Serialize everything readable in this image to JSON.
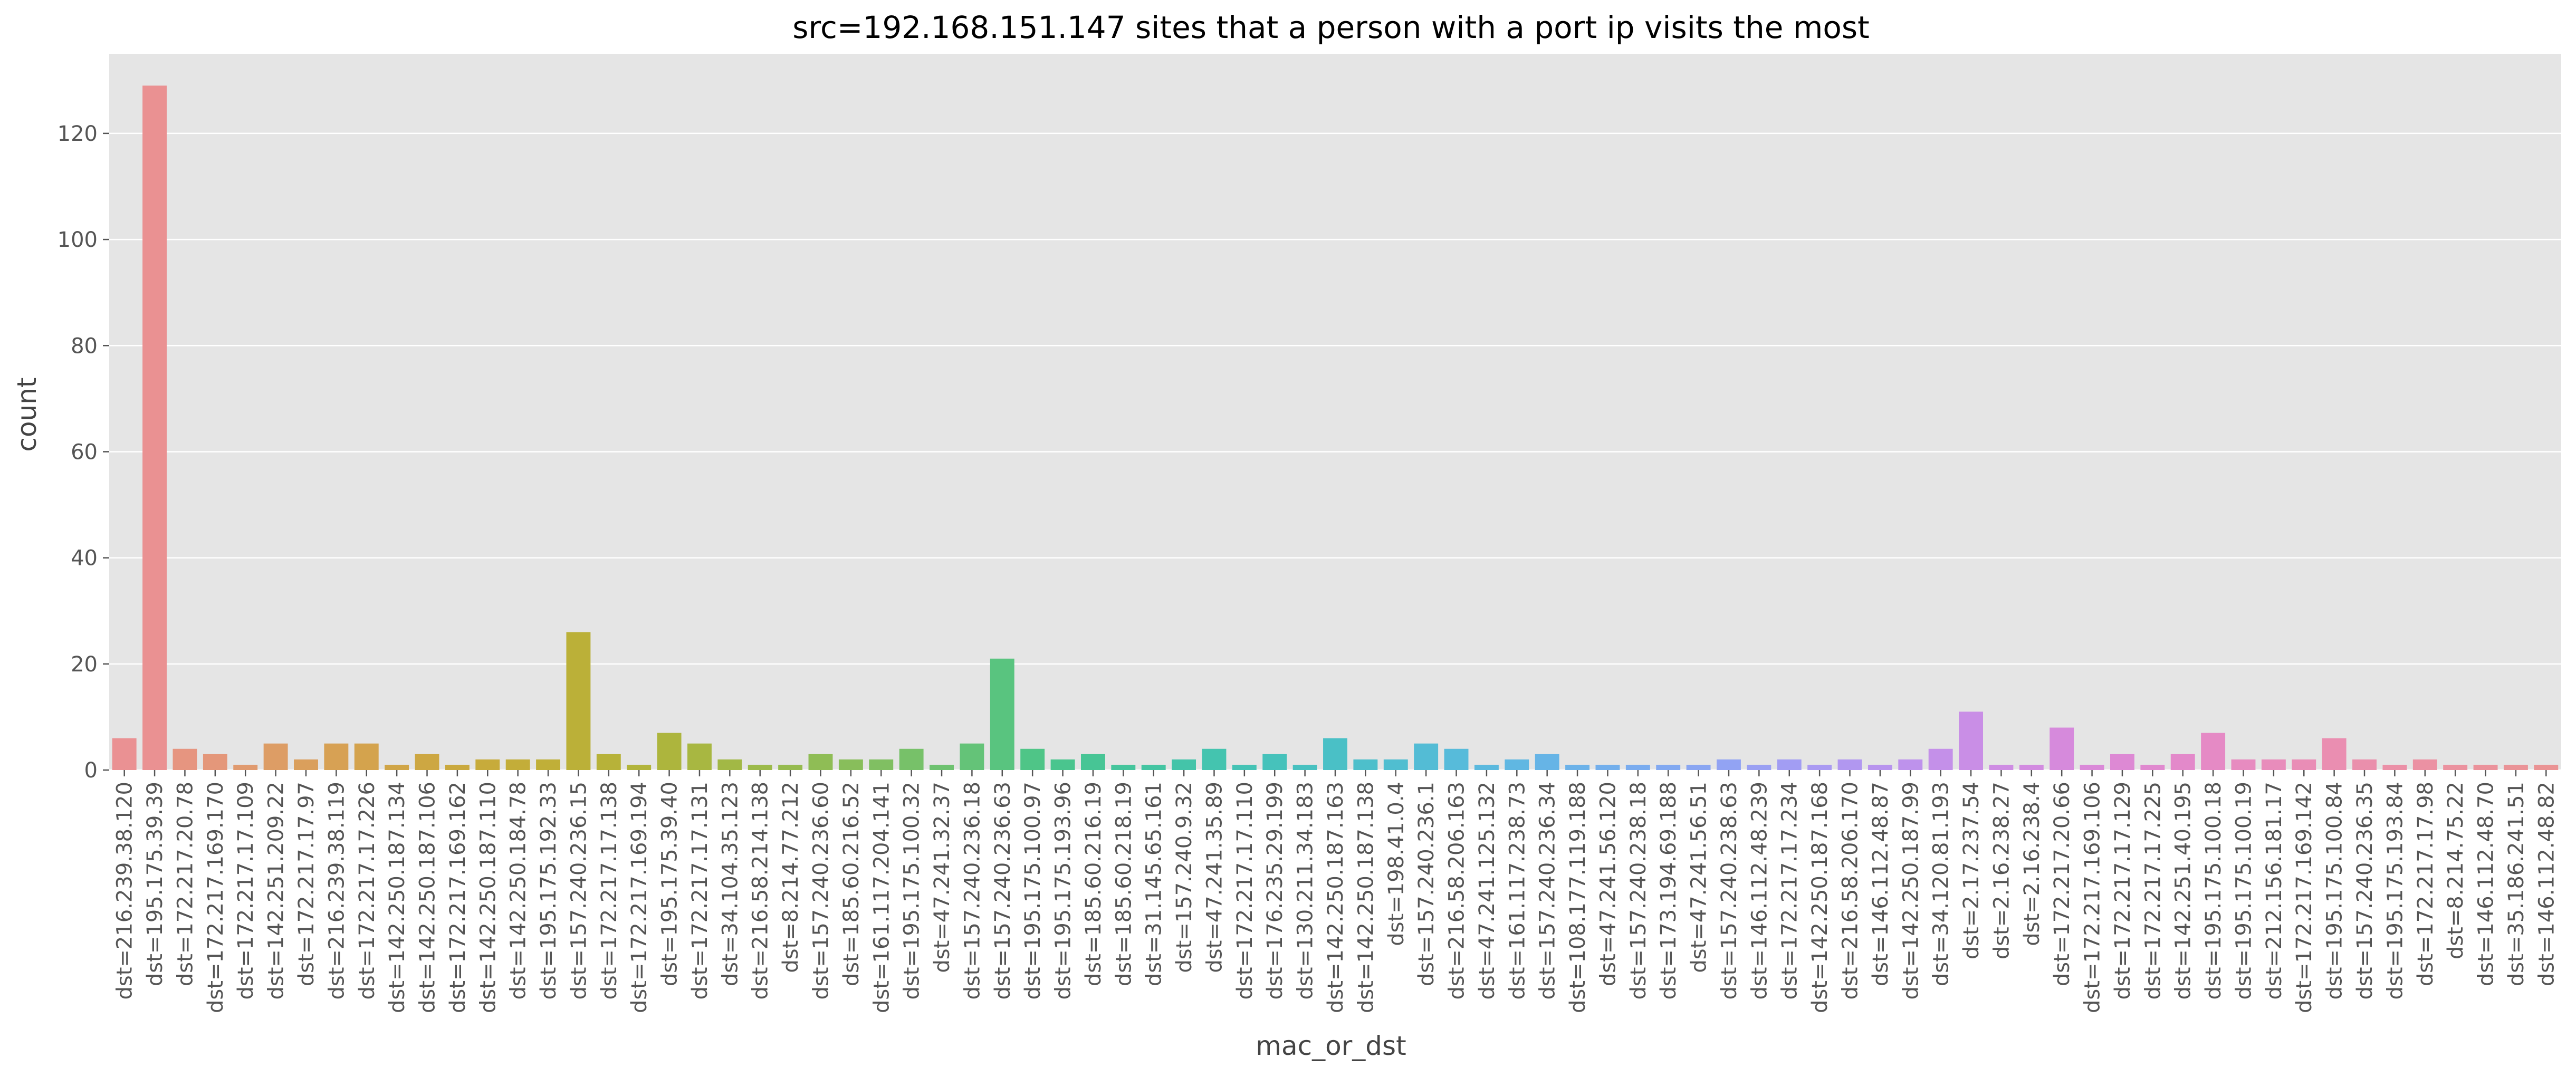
{
  "chart_data": {
    "type": "bar",
    "title": "src=192.168.151.147 sites that a person with a port ip visits the most",
    "xlabel": "mac_or_dst",
    "ylabel": "count",
    "ylim": [
      0,
      135
    ],
    "yticks": [
      0,
      20,
      40,
      60,
      80,
      100,
      120
    ],
    "grid": true,
    "legend": "none",
    "background": "#e5e5e5",
    "grid_color": "#ffffff",
    "categories": [
      "dst=216.239.38.120",
      "dst=195.175.39.39",
      "dst=172.217.20.78",
      "dst=172.217.169.170",
      "dst=172.217.17.109",
      "dst=142.251.209.22",
      "dst=172.217.17.97",
      "dst=216.239.38.119",
      "dst=172.217.17.226",
      "dst=142.250.187.134",
      "dst=142.250.187.106",
      "dst=172.217.169.162",
      "dst=142.250.187.110",
      "dst=142.250.184.78",
      "dst=195.175.192.33",
      "dst=157.240.236.15",
      "dst=172.217.17.138",
      "dst=172.217.169.194",
      "dst=195.175.39.40",
      "dst=172.217.17.131",
      "dst=34.104.35.123",
      "dst=216.58.214.138",
      "dst=8.214.77.212",
      "dst=157.240.236.60",
      "dst=185.60.216.52",
      "dst=161.117.204.141",
      "dst=195.175.100.32",
      "dst=47.241.32.37",
      "dst=157.240.236.18",
      "dst=157.240.236.63",
      "dst=195.175.100.97",
      "dst=195.175.193.96",
      "dst=185.60.216.19",
      "dst=185.60.218.19",
      "dst=31.145.65.161",
      "dst=157.240.9.32",
      "dst=47.241.35.89",
      "dst=172.217.17.110",
      "dst=176.235.29.199",
      "dst=130.211.34.183",
      "dst=142.250.187.163",
      "dst=142.250.187.138",
      "dst=198.41.0.4",
      "dst=157.240.236.1",
      "dst=216.58.206.163",
      "dst=47.241.125.132",
      "dst=161.117.238.73",
      "dst=157.240.236.34",
      "dst=108.177.119.188",
      "dst=47.241.56.120",
      "dst=157.240.238.18",
      "dst=173.194.69.188",
      "dst=47.241.56.51",
      "dst=157.240.238.63",
      "dst=146.112.48.239",
      "dst=172.217.17.234",
      "dst=142.250.187.168",
      "dst=216.58.206.170",
      "dst=146.112.48.87",
      "dst=142.250.187.99",
      "dst=34.120.81.193",
      "dst=2.17.237.54",
      "dst=2.16.238.27",
      "dst=2.16.238.4",
      "dst=172.217.20.66",
      "dst=172.217.169.106",
      "dst=172.217.17.129",
      "dst=172.217.17.225",
      "dst=142.251.40.195",
      "dst=195.175.100.18",
      "dst=195.175.100.19",
      "dst=212.156.181.17",
      "dst=172.217.169.142",
      "dst=195.175.100.84",
      "dst=157.240.236.35",
      "dst=195.175.193.84",
      "dst=172.217.17.98",
      "dst=8.214.75.22",
      "dst=146.112.48.70",
      "dst=35.186.241.51",
      "dst=146.112.48.82"
    ],
    "values": [
      6,
      129,
      4,
      3,
      1,
      5,
      2,
      5,
      5,
      1,
      3,
      1,
      2,
      2,
      2,
      26,
      3,
      1,
      7,
      5,
      2,
      1,
      1,
      3,
      2,
      2,
      4,
      1,
      5,
      21,
      4,
      2,
      3,
      1,
      1,
      2,
      4,
      1,
      3,
      1,
      6,
      2,
      2,
      5,
      4,
      1,
      2,
      3,
      1,
      1,
      1,
      1,
      1,
      2,
      1,
      2,
      1,
      2,
      1,
      2,
      4,
      11,
      1,
      1,
      8,
      1,
      3,
      1,
      3,
      7,
      2,
      2,
      2,
      6,
      2,
      1,
      2,
      1,
      1,
      1,
      1
    ],
    "colors": [
      "#ea9193",
      "#ea9192",
      "#e69580",
      "#e4977a",
      "#e09a6f",
      "#dd9d65",
      "#da9f5c",
      "#d7a154",
      "#d4a34d",
      "#d0a547",
      "#cda742",
      "#caa93e",
      "#c7ab3b",
      "#c3ad39",
      "#c0af38",
      "#bbb038",
      "#b7b239",
      "#b2b43b",
      "#adb53d",
      "#a8b741",
      "#a2b845",
      "#9cba4a",
      "#96bb4f",
      "#8fbd55",
      "#88be5b",
      "#80bf62",
      "#77c169",
      "#6ec270",
      "#64c378",
      "#59c47f",
      "#4fc587",
      "#4ac58e",
      "#47c595",
      "#45c59c",
      "#44c5a2",
      "#44c4a9",
      "#44c4af",
      "#45c3b5",
      "#46c2bb",
      "#48c1c0",
      "#4ac0c6",
      "#4dbfcb",
      "#50bed0",
      "#53bcd5",
      "#57bbda",
      "#5bb9de",
      "#60b7e2",
      "#66b4e6",
      "#6cb2e9",
      "#73afec",
      "#7aacef",
      "#82a9f1",
      "#8aa6f2",
      "#92a3f3",
      "#9aa0f3",
      "#a29df3",
      "#aa9af2",
      "#b197f0",
      "#b894ee",
      "#be92ec",
      "#c490e9",
      "#c98ee6",
      "#ce8ce3",
      "#d28be0",
      "#d68adc",
      "#da89d8",
      "#dd89d4",
      "#e089cf",
      "#e389ca",
      "#e58ac5",
      "#e78bc0",
      "#e88cbb",
      "#e98db6",
      "#ea8eb1",
      "#ea8fac",
      "#eb90a7",
      "#eb91a3",
      "#eb929f",
      "#eb929b",
      "#ea9397",
      "#ea9394"
    ]
  }
}
